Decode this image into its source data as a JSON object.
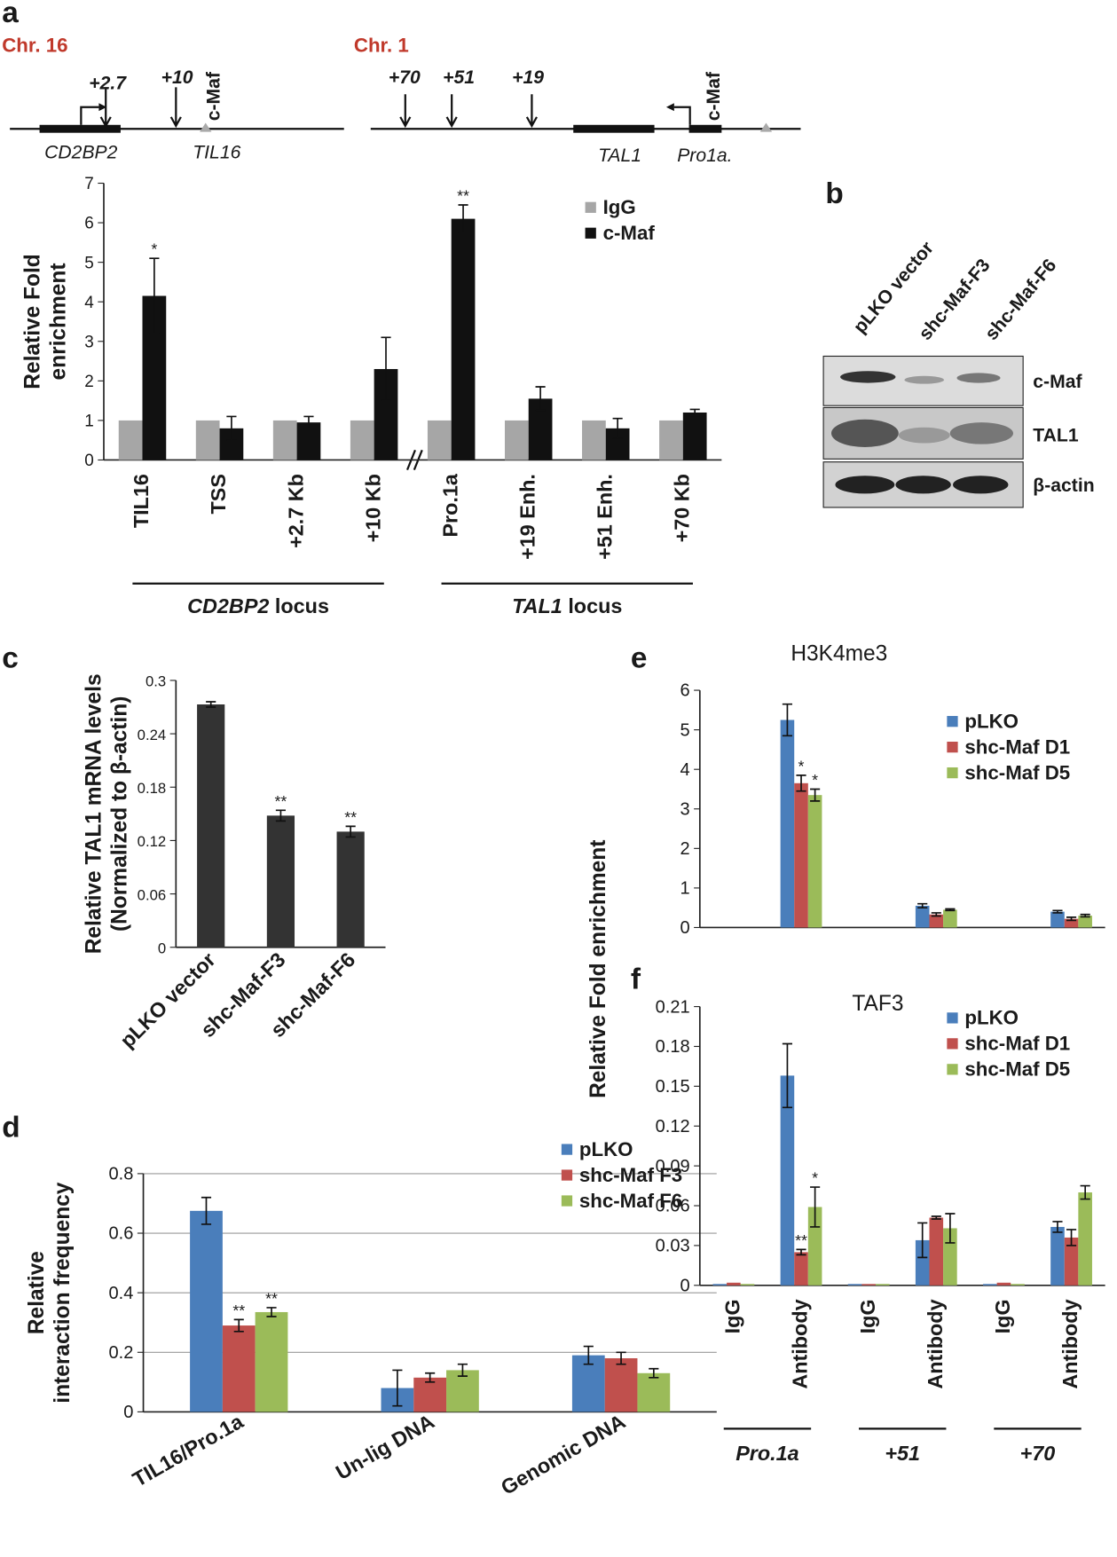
{
  "panel_labels": [
    "a",
    "b",
    "c",
    "d",
    "e",
    "f"
  ],
  "diagram": {
    "chr16": {
      "title": "Chr. 16",
      "sites": [
        "+2.7",
        "+10"
      ],
      "maf": "c-Maf",
      "genes": [
        "CD2BP2",
        "TIL16"
      ]
    },
    "chr1": {
      "title": "Chr. 1",
      "sites": [
        "+70",
        "+51",
        "+19"
      ],
      "maf": "c-Maf",
      "genes": [
        "TAL1",
        "Pro1a."
      ]
    }
  },
  "blot": {
    "lanes": [
      "pLKO vector",
      "shc-Maf-F3",
      "shc-Maf-F6"
    ],
    "rows": [
      "c-Maf",
      "TAL1",
      "β-actin"
    ]
  },
  "shared_ylabel_ef": "Relative Fold enrichment",
  "chart_data": [
    {
      "type": "bar",
      "ylabel": [
        "Relative Fold",
        "enrichment"
      ],
      "ylim": [
        0,
        7
      ],
      "yticks": [
        0,
        1,
        2,
        3,
        4,
        5,
        6,
        7
      ],
      "categories": [
        "TIL16",
        "TSS",
        "+2.7 Kb",
        "+10 Kb",
        "Pro.1a",
        "+19 Enh.",
        "+51 Enh.",
        "+70 Kb"
      ],
      "series": [
        {
          "name": "IgG",
          "color": "#a6a6a6",
          "values": [
            1,
            1,
            1,
            1,
            1,
            1,
            1,
            1
          ]
        },
        {
          "name": "c-Maf",
          "color": "#111111",
          "values": [
            4.15,
            0.8,
            0.95,
            2.3,
            6.1,
            1.55,
            0.8,
            1.2
          ],
          "errors": [
            0.95,
            0.3,
            0.15,
            0.8,
            0.35,
            0.3,
            0.25,
            0.08
          ],
          "significance": [
            "*",
            null,
            null,
            null,
            "**",
            null,
            null,
            null
          ]
        }
      ],
      "groups": [
        {
          "gene": "CD2BP2",
          "suffix": "locus"
        },
        {
          "gene": "TAL1",
          "suffix": "locus"
        }
      ]
    },
    {
      "type": "bar",
      "ylabel": [
        "Relative TAL1 mRNA levels",
        "(Normalized to β-actin)"
      ],
      "ylim": [
        0,
        0.3
      ],
      "yticks": [
        0,
        0.06,
        0.12,
        0.18,
        0.24,
        0.3
      ],
      "categories": [
        "pLKO vector",
        "shc-Maf-F3",
        "shc-Maf-F6"
      ],
      "series": [
        {
          "color": "#333333",
          "values": [
            0.273,
            0.148,
            0.13
          ],
          "errors": [
            0.003,
            0.006,
            0.006
          ],
          "significance": [
            null,
            "**",
            "**"
          ]
        }
      ]
    },
    {
      "type": "bar",
      "ylabel": [
        "Relative",
        "interaction frequency"
      ],
      "ylim": [
        0,
        0.8
      ],
      "yticks": [
        0,
        0.2,
        0.4,
        0.6,
        0.8
      ],
      "grid": true,
      "categories": [
        "TIL16/Pro.1a",
        "Un-lig DNA",
        "Genomic DNA"
      ],
      "series": [
        {
          "name": "pLKO",
          "color": "#4a7ebb",
          "values": [
            0.675,
            0.08,
            0.19
          ],
          "errors": [
            0.045,
            0.06,
            0.03
          ]
        },
        {
          "name": "shc-Maf F3",
          "color": "#c0504d",
          "values": [
            0.29,
            0.115,
            0.18
          ],
          "errors": [
            0.02,
            0.015,
            0.02
          ],
          "significance": [
            "**",
            null,
            null
          ]
        },
        {
          "name": "shc-Maf F6",
          "color": "#9bbb59",
          "values": [
            0.335,
            0.14,
            0.13
          ],
          "errors": [
            0.015,
            0.02,
            0.015
          ],
          "significance": [
            "**",
            null,
            null
          ]
        }
      ]
    },
    {
      "type": "bar",
      "title": "H3K4me3",
      "ylim": [
        0,
        6
      ],
      "yticks": [
        0,
        1,
        2,
        3,
        4,
        5,
        6
      ],
      "categories": [
        null,
        null,
        null,
        null,
        null,
        null
      ],
      "series": [
        {
          "name": "pLKO",
          "color": "#4a7ebb",
          "values": [
            null,
            5.25,
            null,
            0.55,
            null,
            0.4
          ],
          "errors": [
            null,
            0.4,
            null,
            0.05,
            null,
            0.03
          ]
        },
        {
          "name": "shc-Maf D1",
          "color": "#c0504d",
          "values": [
            null,
            3.65,
            null,
            0.33,
            null,
            0.22
          ],
          "errors": [
            null,
            0.2,
            null,
            0.04,
            null,
            0.04
          ],
          "significance": [
            null,
            "*",
            null,
            null,
            null,
            null
          ]
        },
        {
          "name": "shc-Maf D5",
          "color": "#9bbb59",
          "values": [
            null,
            3.35,
            null,
            0.45,
            null,
            0.3
          ],
          "errors": [
            null,
            0.15,
            null,
            0.02,
            null,
            0.03
          ],
          "significance": [
            null,
            "*",
            null,
            null,
            null,
            null
          ]
        }
      ]
    },
    {
      "type": "bar",
      "title": "TAF3",
      "ylim": [
        0,
        0.21
      ],
      "yticks": [
        0,
        0.03,
        0.06,
        0.09,
        0.12,
        0.15,
        0.18,
        0.21
      ],
      "categories": [
        "IgG",
        "Antibody",
        "IgG",
        "Antibody",
        "IgG",
        "Antibody"
      ],
      "series": [
        {
          "name": "pLKO",
          "color": "#4a7ebb",
          "values": [
            0.001,
            0.158,
            0.001,
            0.034,
            0.001,
            0.044
          ],
          "errors": [
            null,
            0.024,
            null,
            0.013,
            null,
            0.004
          ]
        },
        {
          "name": "shc-Maf D1",
          "color": "#c0504d",
          "values": [
            0.002,
            0.025,
            0.001,
            0.051,
            0.002,
            0.036
          ],
          "errors": [
            null,
            0.002,
            null,
            0.001,
            null,
            0.006
          ],
          "significance": [
            null,
            "**",
            null,
            null,
            null,
            null
          ]
        },
        {
          "name": "shc-Maf D5",
          "color": "#9bbb59",
          "values": [
            0.001,
            0.059,
            0.001,
            0.043,
            0.001,
            0.07
          ],
          "errors": [
            null,
            0.015,
            null,
            0.011,
            null,
            0.005
          ],
          "significance": [
            null,
            "*",
            null,
            null,
            null,
            null
          ]
        }
      ],
      "groups": [
        {
          "gene": "Pro.1a"
        },
        {
          "gene": "+51"
        },
        {
          "gene": "+70"
        }
      ]
    }
  ]
}
